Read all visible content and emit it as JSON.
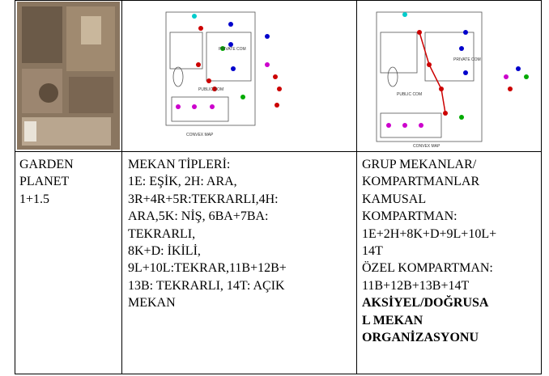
{
  "images": [
    {
      "labels": []
    },
    {
      "labels": [
        "PRIVATE COM",
        "PUBLIC COM",
        "CONVEX MAP"
      ]
    },
    {
      "labels": [
        "PRIVATE COM",
        "PUBLIC COM",
        "CONVEX MAP"
      ]
    }
  ],
  "table": {
    "rows": [
      {
        "cells": [
          {
            "lines": [
              "GARDEN",
              "PLANET",
              "1+1.5"
            ]
          },
          {
            "lines": [
              "MEKAN TİPLERİ:",
              "1E: EŞİK, 2H: ARA,",
              "3R+4R+5R:TEKRARLI,4H:",
              "ARA,5K: NİŞ, 6BA+7BA:",
              "TEKRARLI,",
              "8K+D: İKİLİ,",
              "9L+10L:TEKRAR,11B+12B+",
              "13B: TEKRARLI, 14T: AÇIK",
              "MEKAN"
            ]
          },
          {
            "lines": [
              "GRUP MEKANLAR/",
              "KOMPARTMANLAR",
              "KAMUSAL",
              "KOMPARTMAN:",
              "1E+2H+8K+D+9L+10L+",
              "14T",
              "ÖZEL KOMPARTMAN:",
              "11B+12B+13B+14T"
            ],
            "bold_lines": [
              "AKSİYEL/DOĞRUSA",
              "L MEKAN",
              "ORGANİZASYONU"
            ]
          }
        ]
      }
    ]
  }
}
